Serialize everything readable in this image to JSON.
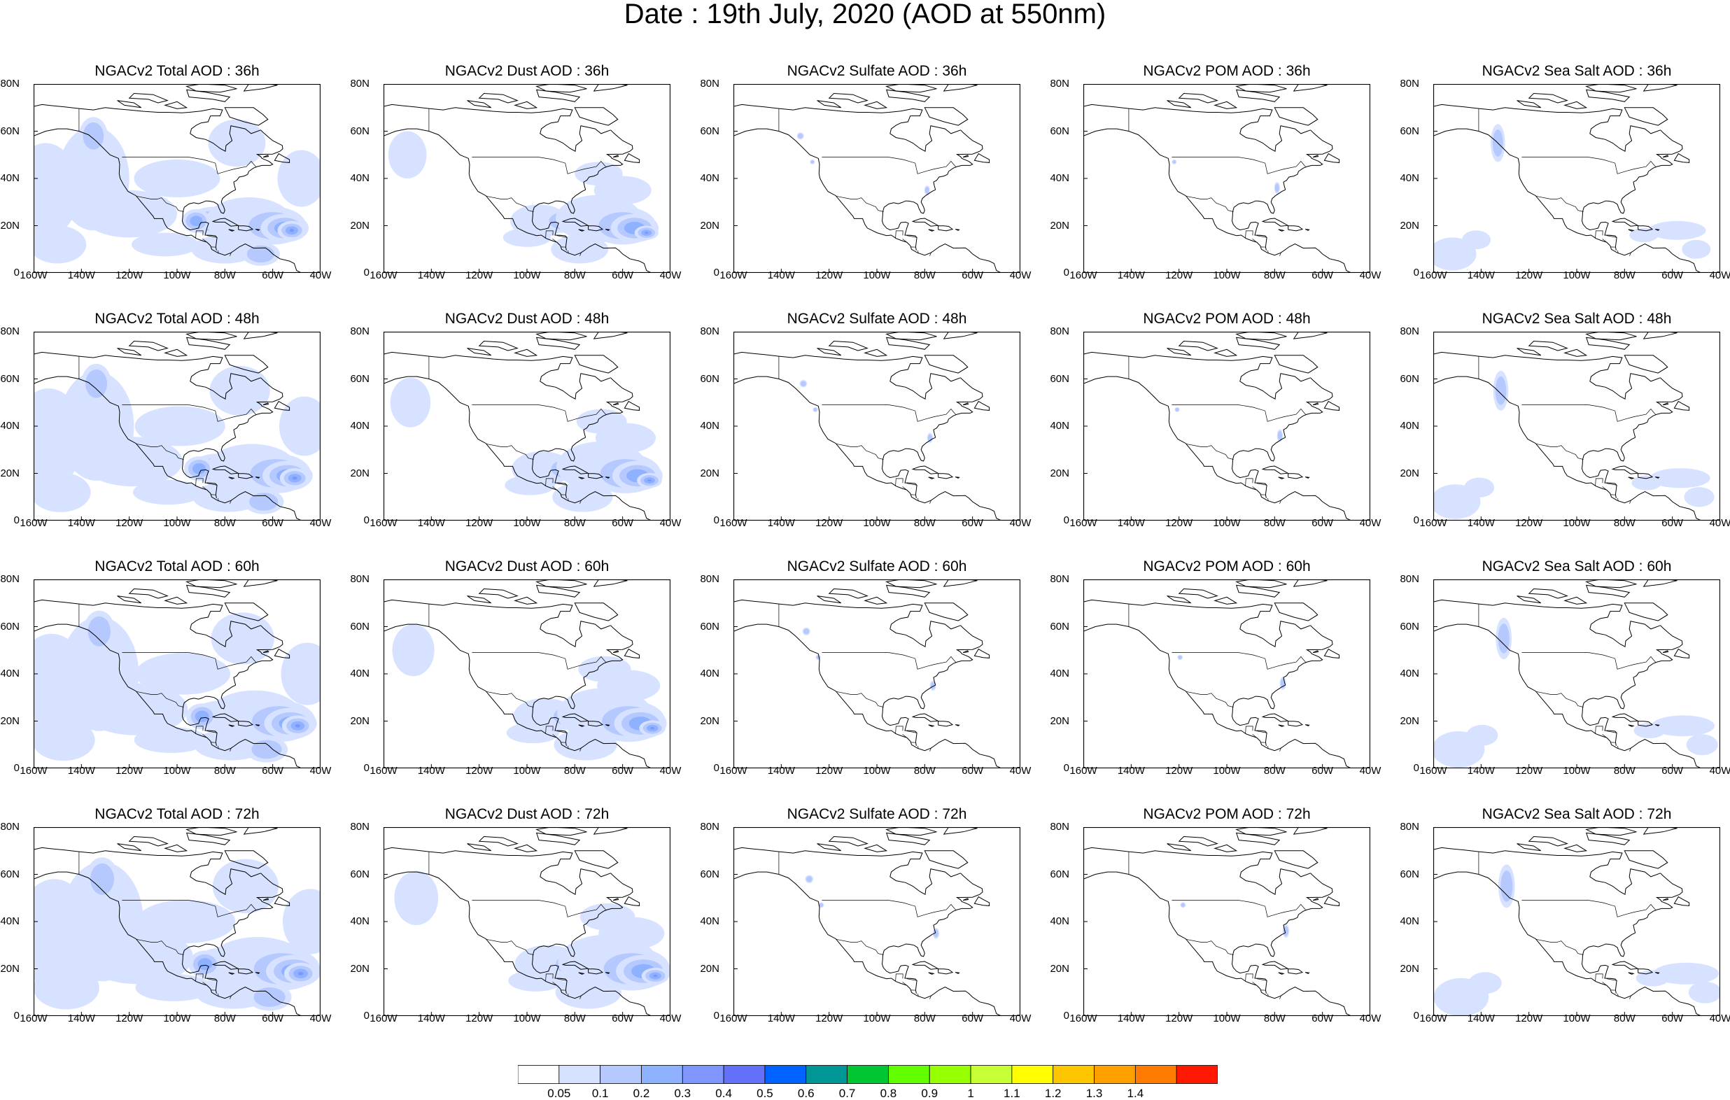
{
  "title": "Date : 19th July, 2020 (AOD at 550nm)",
  "axes": {
    "y_ticks": [
      "80N",
      "60N",
      "40N",
      "20N",
      "0"
    ],
    "x_ticks": [
      "160W",
      "140W",
      "120W",
      "100W",
      "80W",
      "60W",
      "40W"
    ]
  },
  "panels": [
    {
      "row": 0,
      "col": 0,
      "title": "NGACv2 Total AOD : 36h",
      "species": "total",
      "forecast_hour": 36
    },
    {
      "row": 0,
      "col": 1,
      "title": "NGACv2 Dust AOD : 36h",
      "species": "dust",
      "forecast_hour": 36
    },
    {
      "row": 0,
      "col": 2,
      "title": "NGACv2 Sulfate AOD : 36h",
      "species": "sulfate",
      "forecast_hour": 36
    },
    {
      "row": 0,
      "col": 3,
      "title": "NGACv2 POM AOD : 36h",
      "species": "pom",
      "forecast_hour": 36
    },
    {
      "row": 0,
      "col": 4,
      "title": "NGACv2 Sea Salt AOD : 36h",
      "species": "seasalt",
      "forecast_hour": 36
    },
    {
      "row": 1,
      "col": 0,
      "title": "NGACv2 Total AOD : 48h",
      "species": "total",
      "forecast_hour": 48
    },
    {
      "row": 1,
      "col": 1,
      "title": "NGACv2 Dust AOD : 48h",
      "species": "dust",
      "forecast_hour": 48
    },
    {
      "row": 1,
      "col": 2,
      "title": "NGACv2 Sulfate AOD : 48h",
      "species": "sulfate",
      "forecast_hour": 48
    },
    {
      "row": 1,
      "col": 3,
      "title": "NGACv2 POM AOD : 48h",
      "species": "pom",
      "forecast_hour": 48
    },
    {
      "row": 1,
      "col": 4,
      "title": "NGACv2 Sea Salt AOD : 48h",
      "species": "seasalt",
      "forecast_hour": 48
    },
    {
      "row": 2,
      "col": 0,
      "title": "NGACv2 Total AOD : 60h",
      "species": "total",
      "forecast_hour": 60
    },
    {
      "row": 2,
      "col": 1,
      "title": "NGACv2 Dust AOD : 60h",
      "species": "dust",
      "forecast_hour": 60
    },
    {
      "row": 2,
      "col": 2,
      "title": "NGACv2 Sulfate AOD : 60h",
      "species": "sulfate",
      "forecast_hour": 60
    },
    {
      "row": 2,
      "col": 3,
      "title": "NGACv2 POM AOD : 60h",
      "species": "pom",
      "forecast_hour": 60
    },
    {
      "row": 2,
      "col": 4,
      "title": "NGACv2 Sea Salt AOD : 60h",
      "species": "seasalt",
      "forecast_hour": 60
    },
    {
      "row": 3,
      "col": 0,
      "title": "NGACv2 Total AOD : 72h",
      "species": "total",
      "forecast_hour": 72
    },
    {
      "row": 3,
      "col": 1,
      "title": "NGACv2 Dust AOD : 72h",
      "species": "dust",
      "forecast_hour": 72
    },
    {
      "row": 3,
      "col": 2,
      "title": "NGACv2 Sulfate AOD : 72h",
      "species": "sulfate",
      "forecast_hour": 72
    },
    {
      "row": 3,
      "col": 3,
      "title": "NGACv2 POM AOD : 72h",
      "species": "pom",
      "forecast_hour": 72
    },
    {
      "row": 3,
      "col": 4,
      "title": "NGACv2 Sea Salt  AOD : 72h",
      "species": "seasalt",
      "forecast_hour": 72
    }
  ],
  "colorbar": {
    "labels": [
      "0.05",
      "0.1",
      "0.2",
      "0.3",
      "0.4",
      "0.5",
      "0.6",
      "0.7",
      "0.8",
      "0.9",
      "1",
      "1.1",
      "1.2",
      "1.3",
      "1.4"
    ],
    "colors": [
      "#ffffff",
      "#d6e2ff",
      "#b5c9ff",
      "#8eb2ff",
      "#7f96ff",
      "#6370f8",
      "#0063ff",
      "#009696",
      "#00c633",
      "#63ff00",
      "#96ff00",
      "#c6ff33",
      "#ffff00",
      "#ffc600",
      "#ffa000",
      "#ff7c00",
      "#ff1900"
    ]
  }
}
